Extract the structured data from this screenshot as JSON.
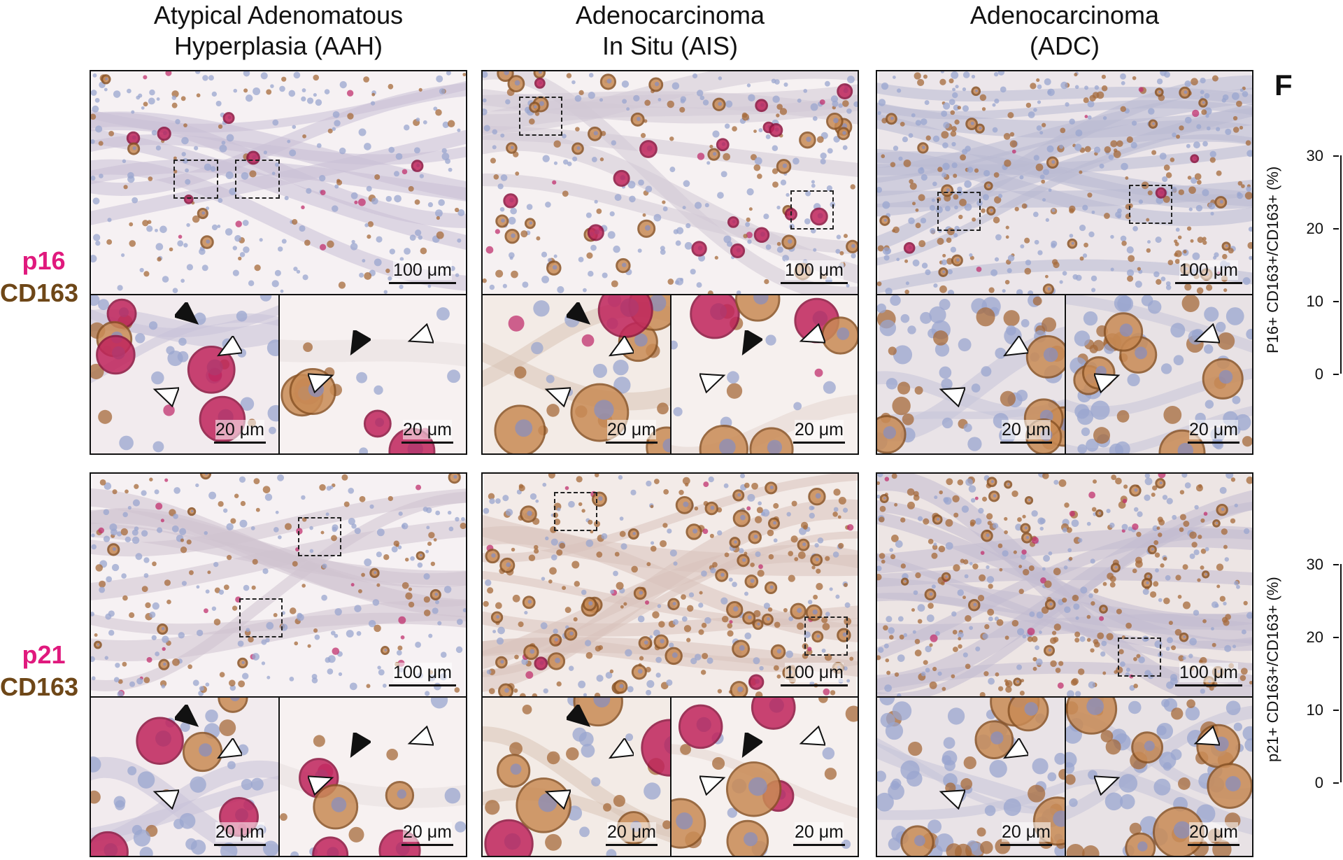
{
  "columns": [
    {
      "line1": "Atypical Adenomatous",
      "line2": "Hyperplasia (AAH)"
    },
    {
      "line1": "Adenocarcinoma",
      "line2": "In Situ (AIS)"
    },
    {
      "line1": "Adenocarcinoma",
      "line2": "(ADC)"
    }
  ],
  "rows": [
    {
      "marker1": "p16",
      "marker2": "CD163"
    },
    {
      "marker1": "p21",
      "marker2": "CD163"
    }
  ],
  "scale_bars": {
    "large": "100 μm",
    "small": "20 μm"
  },
  "panel_letter": "F",
  "plots": [
    {
      "ylabel": "P16+ CD163+/CD163+ (%)",
      "ticks": [
        "30",
        "20",
        "10",
        "0"
      ]
    },
    {
      "ylabel": "p21+ CD163+/CD163+ (%)",
      "ticks": [
        "30",
        "20",
        "10",
        "0"
      ]
    }
  ],
  "colors": {
    "magenta": "#e0197d",
    "brown": "#6e4718",
    "tissue_bg": "#f4eeee"
  }
}
